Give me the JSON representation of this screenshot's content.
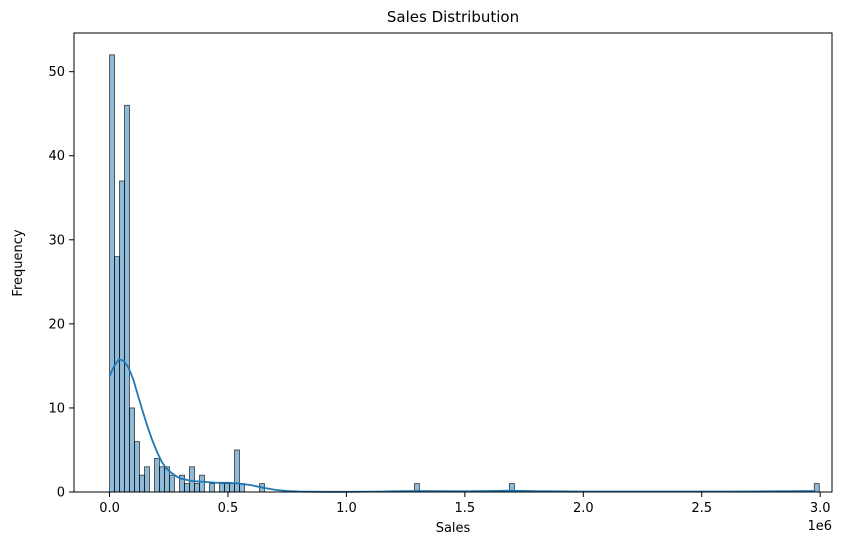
{
  "chart_data": {
    "type": "histogram",
    "title": "Sales Distribution",
    "xlabel": "Sales",
    "ylabel": "Frequency",
    "x_offset_text": "1e6",
    "xlim": [
      -0.15,
      3.05
    ],
    "ylim": [
      0,
      54.6
    ],
    "x_ticks": [
      0.0,
      0.5,
      1.0,
      1.5,
      2.0,
      2.5,
      3.0
    ],
    "x_tick_labels": [
      "0.0",
      "0.5",
      "1.0",
      "1.5",
      "2.0",
      "2.5",
      "3.0"
    ],
    "y_ticks": [
      0,
      10,
      20,
      30,
      40,
      50
    ],
    "y_tick_labels": [
      "0",
      "10",
      "20",
      "30",
      "40",
      "50"
    ],
    "bar_color": "#1f77b4",
    "bar_alpha": 0.5,
    "kde_color": "#1f77b4",
    "bin_width": 0.0211,
    "bins": [
      {
        "x": 0.0,
        "count": 52
      },
      {
        "x": 0.0211,
        "count": 28
      },
      {
        "x": 0.0422,
        "count": 37
      },
      {
        "x": 0.0633,
        "count": 46
      },
      {
        "x": 0.0844,
        "count": 10
      },
      {
        "x": 0.1055,
        "count": 6
      },
      {
        "x": 0.1266,
        "count": 2
      },
      {
        "x": 0.1477,
        "count": 3
      },
      {
        "x": 0.1899,
        "count": 4
      },
      {
        "x": 0.211,
        "count": 3
      },
      {
        "x": 0.2321,
        "count": 3
      },
      {
        "x": 0.2532,
        "count": 2
      },
      {
        "x": 0.2954,
        "count": 2
      },
      {
        "x": 0.3165,
        "count": 1
      },
      {
        "x": 0.3376,
        "count": 3
      },
      {
        "x": 0.3587,
        "count": 1
      },
      {
        "x": 0.3798,
        "count": 2
      },
      {
        "x": 0.422,
        "count": 1
      },
      {
        "x": 0.4642,
        "count": 1
      },
      {
        "x": 0.4853,
        "count": 1
      },
      {
        "x": 0.5064,
        "count": 1
      },
      {
        "x": 0.5275,
        "count": 5
      },
      {
        "x": 0.5486,
        "count": 1
      },
      {
        "x": 0.633,
        "count": 1
      },
      {
        "x": 1.2871,
        "count": 1
      },
      {
        "x": 1.688,
        "count": 1
      },
      {
        "x": 2.9751,
        "count": 1
      }
    ],
    "kde": {
      "x": [
        0.0,
        0.02,
        0.04,
        0.06,
        0.08,
        0.1,
        0.12,
        0.14,
        0.16,
        0.18,
        0.2,
        0.22,
        0.24,
        0.26,
        0.28,
        0.3,
        0.35,
        0.4,
        0.45,
        0.5,
        0.55,
        0.6,
        0.65,
        0.7,
        0.75,
        0.8,
        0.9,
        1.0,
        1.1,
        1.2,
        1.29,
        1.4,
        1.5,
        1.6,
        1.69,
        1.8,
        2.0,
        2.2,
        2.4,
        2.6,
        2.8,
        2.98
      ],
      "y": [
        13.8,
        15.0,
        15.8,
        15.6,
        14.8,
        13.4,
        11.5,
        9.6,
        7.8,
        6.2,
        4.8,
        3.6,
        2.8,
        2.3,
        1.9,
        1.6,
        1.3,
        1.2,
        1.1,
        1.1,
        1.0,
        0.8,
        0.5,
        0.25,
        0.12,
        0.05,
        0.02,
        0.02,
        0.04,
        0.08,
        0.12,
        0.1,
        0.08,
        0.12,
        0.16,
        0.1,
        0.05,
        0.05,
        0.05,
        0.06,
        0.08,
        0.12
      ]
    }
  }
}
